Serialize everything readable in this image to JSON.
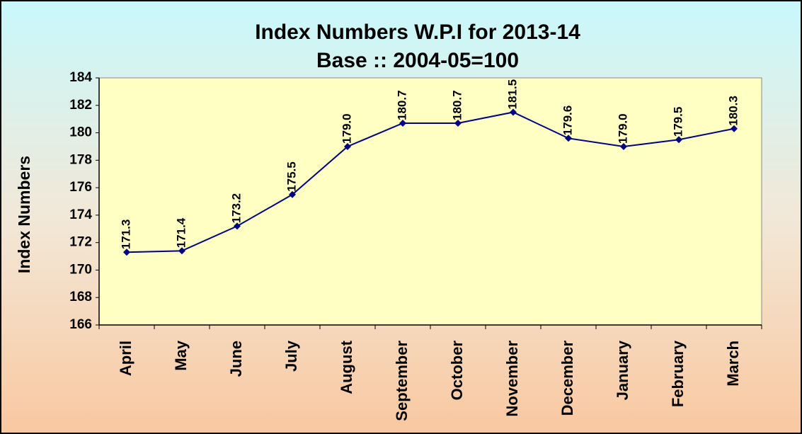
{
  "chart_data": {
    "type": "line",
    "title": "Index Numbers W.P.I for 2013-14",
    "subtitle": "Base :: 2004-05=100",
    "y_label": "Index Numbers",
    "categories": [
      "April",
      "May",
      "June",
      "July",
      "August",
      "September",
      "October",
      "November",
      "December",
      "January",
      "February",
      "March"
    ],
    "values": [
      171.3,
      171.4,
      173.2,
      175.5,
      179.0,
      180.7,
      180.7,
      181.5,
      179.6,
      179.0,
      179.5,
      180.3
    ],
    "value_labels": [
      "171.3",
      "171.4",
      "173.2",
      "175.5",
      "179.0",
      "180.7",
      "180.7",
      "181.5",
      "179.6",
      "179.0",
      "179.5",
      "180.3"
    ],
    "color": "#000080",
    "ylim": [
      166,
      184
    ],
    "yticks": [
      166,
      168,
      170,
      172,
      174,
      176,
      178,
      180,
      182,
      184
    ],
    "grid": false
  }
}
